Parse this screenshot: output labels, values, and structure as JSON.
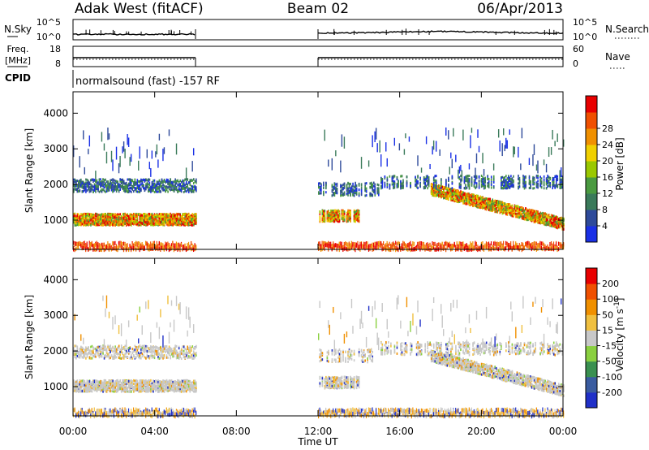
{
  "header": {
    "title": "Adak West (fitACF)",
    "beam": "Beam 02",
    "date": "06/Apr/2013"
  },
  "chart_data": [
    {
      "type": "line",
      "name": "noise",
      "labels": {
        "left": "N.Sky",
        "right": "N.Search"
      },
      "y_ticks_left": [
        "10^5",
        "10^0"
      ],
      "y_ticks_right": [
        "10^5",
        "10^0"
      ],
      "segments_hours": [
        [
          0,
          6
        ],
        [
          12,
          24
        ]
      ]
    },
    {
      "type": "line",
      "name": "frequency",
      "labels": {
        "left": "Freq.",
        "left_unit": "[MHz]",
        "right": "Nave"
      },
      "y_ticks_left": [
        "18",
        "8"
      ],
      "y_ticks_right": [
        "60",
        "0"
      ],
      "segments_hours": [
        [
          0,
          6
        ],
        [
          12,
          24
        ]
      ]
    },
    {
      "type": "table",
      "name": "cpid",
      "label": "CPID",
      "text": "normalsound (fast) -157 RF"
    },
    {
      "type": "heatmap",
      "name": "power",
      "ylabel": "Slant Range [km]",
      "yticks": [
        1000,
        2000,
        3000,
        4000
      ],
      "ylim": [
        180,
        4600
      ],
      "colorbar": {
        "label": "Power [dB]",
        "ticks": [
          "4",
          "8",
          "12",
          "16",
          "20",
          "24",
          "28"
        ],
        "colors": [
          "#1a30e6",
          "#2e4a9a",
          "#3a7a5a",
          "#4a9a40",
          "#9ac800",
          "#f0d000",
          "#f09000",
          "#f05000",
          "#e80000"
        ]
      },
      "echo_bands_km": [
        [
          900,
          1200
        ],
        [
          1700,
          2200
        ]
      ],
      "data_hours": [
        [
          0,
          6
        ],
        [
          12,
          24
        ]
      ]
    },
    {
      "type": "heatmap",
      "name": "velocity",
      "ylabel": "Slant Range [km]",
      "yticks": [
        1000,
        2000,
        3000,
        4000
      ],
      "ylim": [
        180,
        4600
      ],
      "colorbar": {
        "label": "Velocity [m s",
        "label_sup": "-1",
        "label_end": "]",
        "ticks": [
          "200",
          "100",
          "50",
          "15",
          "-15",
          "-50",
          "-100",
          "-200"
        ],
        "colors": [
          "#2030c8",
          "#3a5ca0",
          "#3a9050",
          "#8ad040",
          "#c8c8c8",
          "#f0c040",
          "#f09000",
          "#f05000",
          "#e80000"
        ]
      },
      "echo_bands_km": [
        [
          900,
          1200
        ],
        [
          1700,
          2200
        ]
      ],
      "data_hours": [
        [
          0,
          6
        ],
        [
          12,
          24
        ]
      ]
    }
  ],
  "x_axis": {
    "xlabel": "Time UT",
    "ticks": [
      "00:00",
      "04:00",
      "08:00",
      "12:00",
      "16:00",
      "20:00",
      "00:00"
    ],
    "xlim_hours": [
      0,
      24
    ]
  }
}
